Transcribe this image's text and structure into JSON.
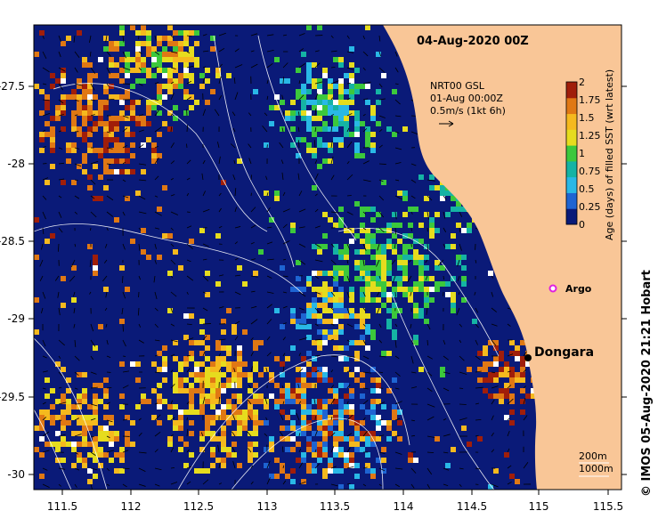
{
  "title": "04-Aug-2020 00Z",
  "legend": {
    "source": "NRT00 GSL",
    "date": "01-Aug 00:00Z",
    "scale": "0.5m/s (1kt 6h)"
  },
  "colorbar": {
    "label": "Age (days) of filled SST (wrt latest)",
    "ticks": [
      "0",
      "0.25",
      "0.5",
      "0.75",
      "1",
      "1.25",
      "1.5",
      "1.75",
      "2"
    ],
    "colors": [
      "#0a1a78",
      "#1e64d2",
      "#29b8e6",
      "#15b3a4",
      "#3cc83c",
      "#e6dc1e",
      "#f5b91e",
      "#e07814",
      "#a01e0a"
    ]
  },
  "axes": {
    "x_ticks": [
      "111.5",
      "112",
      "112.5",
      "113",
      "113.5",
      "114",
      "114.5",
      "115",
      "115.5"
    ],
    "y_ticks": [
      "-27.5",
      "-28",
      "-28.5",
      "-29",
      "-29.5",
      "-30"
    ]
  },
  "places": {
    "argo": "Argo",
    "dongara": "Dongara"
  },
  "depth_contours": [
    "200m",
    "1000m"
  ],
  "credit": "©  IMOS 05-Aug-2020 21:21 Hobart",
  "land_color": "#f9c697",
  "ocean_color": "#0a1a78"
}
